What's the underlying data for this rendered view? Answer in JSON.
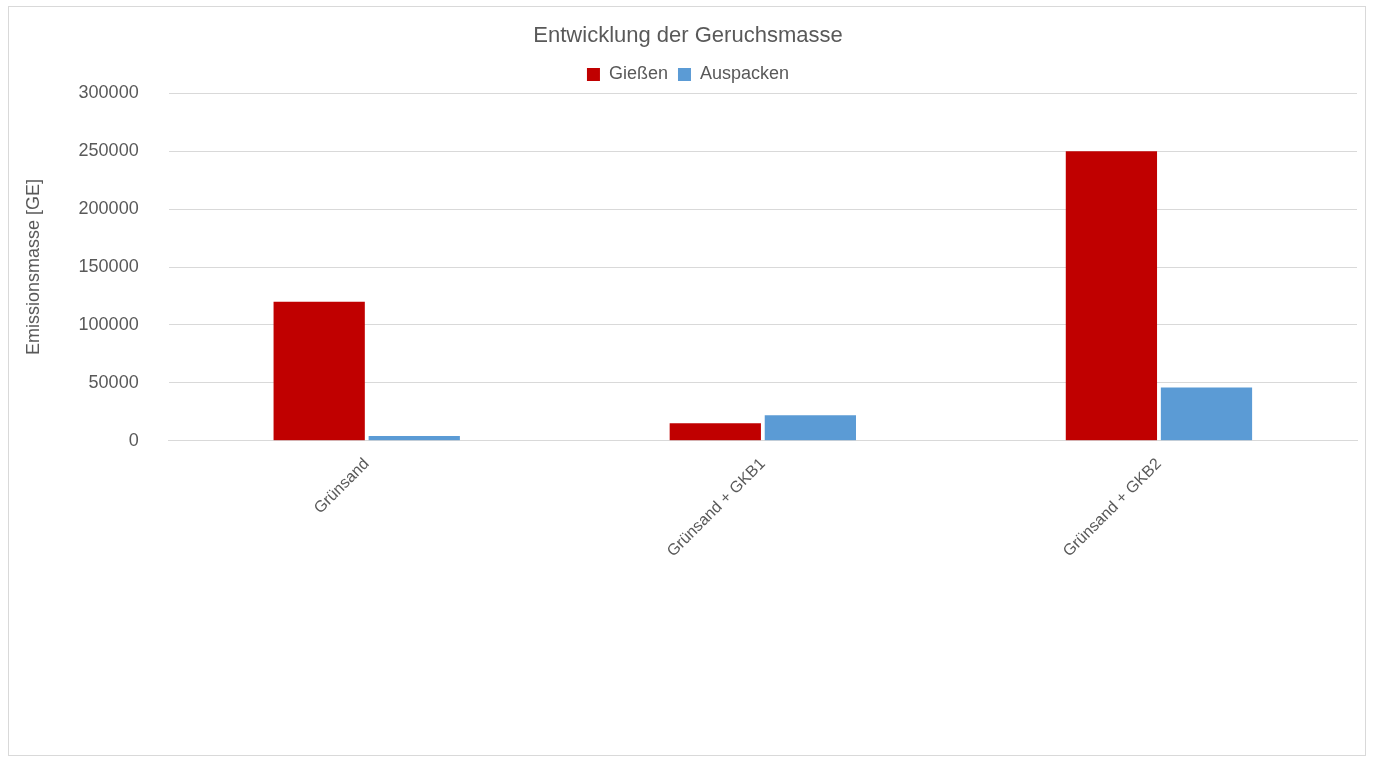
{
  "chart_data": {
    "type": "bar",
    "title": "Entwicklung der Geruchsmasse",
    "ylabel": "Emissionsmasse [GE]",
    "categories": [
      "Grünsand",
      "Grünsand + GKB1",
      "Grünsand + GKB2"
    ],
    "series": [
      {
        "name": "Gießen",
        "color": "#c00000",
        "values": [
          120000,
          15000,
          250000
        ]
      },
      {
        "name": "Auspacken",
        "color": "#5b9bd5",
        "values": [
          4000,
          22000,
          46000
        ]
      }
    ],
    "ylim": [
      0,
      300000
    ],
    "yticks": [
      0,
      50000,
      100000,
      150000,
      200000,
      250000,
      300000
    ],
    "grid": "y",
    "legend": "top"
  }
}
